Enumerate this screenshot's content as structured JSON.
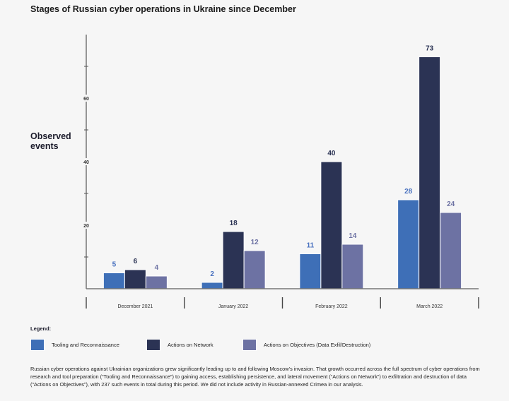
{
  "chart_data": {
    "type": "bar",
    "title": "Stages of Russian cyber operations in Ukraine since December",
    "xlabel": "",
    "ylabel": "Observed events",
    "ylim": [
      0,
      80
    ],
    "yticks": [
      20,
      40,
      60
    ],
    "minor_ticks": [
      10,
      30,
      50,
      70
    ],
    "grid": false,
    "categories": [
      "December 2021",
      "January 2022",
      "February 2022",
      "March 2022"
    ],
    "series": [
      {
        "name": "Tooling and Reconnaissance",
        "color": "#3e6fb7",
        "label_color": "#4a72c0",
        "values": [
          5,
          2,
          11,
          28
        ]
      },
      {
        "name": "Actions on Network",
        "color": "#2b3354",
        "label_color": "#2b3354",
        "values": [
          6,
          18,
          40,
          73
        ]
      },
      {
        "name": "Actions on Objectives (Data Exfil/Destruction)",
        "color": "#6d72a3",
        "label_color": "#6d72a3",
        "values": [
          4,
          12,
          14,
          24
        ]
      }
    ],
    "legend_placement": "bottom"
  },
  "legend": {
    "title": "Legend:",
    "items": [
      "Tooling and Reconnaissance",
      "Actions on Network",
      "Actions on Objectives (Data Exfil/Destruction)"
    ]
  },
  "caption": "Russian cyber operations against Ukrainian organizations grew significantly leading up to and following Moscow’s invasion. That growth occurred across the full spectrum of cyber operations from research and tool preparation (“Tooling and Reconnaissance”) to gaining access, establishing persistence, and lateral movement (“Actions on Network”) to exfiltration and destruction of data (“Actions on Objectives”), with 237 such events in total during this period. We did not include activity in Russian-annexed Crimea in our analysis."
}
